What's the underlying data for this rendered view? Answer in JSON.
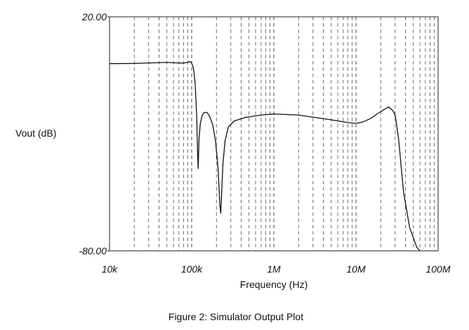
{
  "chart_data": {
    "type": "line",
    "title": "",
    "xlabel": "Frequency (Hz)",
    "ylabel": "Vout (dB)",
    "xscale": "log",
    "xlim": [
      10000,
      100000000
    ],
    "ylim": [
      -80,
      20
    ],
    "grid": "vertical dashed at minor decades",
    "legend": "none",
    "x_tick_labels": [
      "10k",
      "100k",
      "1M",
      "10M",
      "100M"
    ],
    "y_tick_labels": [
      "20.00",
      "-80.00"
    ],
    "series": [
      {
        "x": [
          10000,
          20000,
          50000,
          80000,
          95000,
          100000,
          105000,
          110000,
          115000,
          118000,
          120000,
          123000,
          127000,
          133000,
          140000,
          148000,
          155000,
          165000,
          180000,
          195000,
          210000,
          220000,
          226000,
          232000,
          240000,
          255000,
          280000,
          330000,
          450000,
          700000,
          1000000,
          2000000,
          5000000,
          8000000,
          10000000,
          12000000,
          15000000,
          20000000,
          25000000,
          28000000,
          30000000,
          33000000,
          38000000,
          45000000,
          55000000,
          60000000
        ],
        "y": [
          0.0,
          0.1,
          0.5,
          0.2,
          0.8,
          0.3,
          -2.0,
          -8.0,
          -22.0,
          -38.0,
          -45.0,
          -32.0,
          -26.0,
          -22.5,
          -21.0,
          -20.8,
          -21.0,
          -22.5,
          -26.0,
          -33.0,
          -45.0,
          -60.0,
          -64.0,
          -55.0,
          -43.0,
          -33.0,
          -27.0,
          -24.5,
          -23.0,
          -22.0,
          -21.5,
          -22.0,
          -24.0,
          -25.2,
          -25.5,
          -25.0,
          -23.5,
          -20.5,
          -18.5,
          -20.0,
          -22.0,
          -32.0,
          -55.0,
          -70.0,
          -78.5,
          -80.0
        ]
      }
    ]
  },
  "caption": "Figure 2: Simulator Output Plot"
}
